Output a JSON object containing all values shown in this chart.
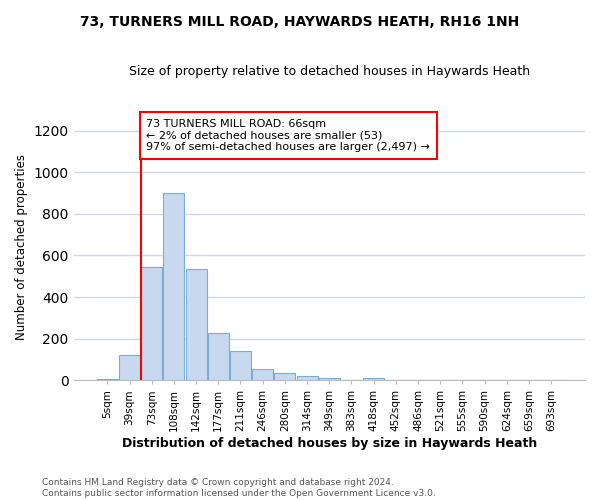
{
  "title": "73, TURNERS MILL ROAD, HAYWARDS HEATH, RH16 1NH",
  "subtitle": "Size of property relative to detached houses in Haywards Heath",
  "xlabel": "Distribution of detached houses by size in Haywards Heath",
  "ylabel": "Number of detached properties",
  "bar_categories": [
    "5sqm",
    "39sqm",
    "73sqm",
    "108sqm",
    "142sqm",
    "177sqm",
    "211sqm",
    "246sqm",
    "280sqm",
    "314sqm",
    "349sqm",
    "383sqm",
    "418sqm",
    "452sqm",
    "486sqm",
    "521sqm",
    "555sqm",
    "590sqm",
    "624sqm",
    "659sqm",
    "693sqm"
  ],
  "bar_values": [
    5,
    120,
    545,
    900,
    535,
    225,
    140,
    52,
    35,
    20,
    13,
    0,
    12,
    0,
    0,
    0,
    0,
    0,
    0,
    0,
    0
  ],
  "bar_color": "#c8d8ee",
  "bar_edge_color": "#7aafd4",
  "annotation_text": "73 TURNERS MILL ROAD: 66sqm\n← 2% of detached houses are smaller (53)\n97% of semi-detached houses are larger (2,497) →",
  "annotation_box_color": "white",
  "annotation_box_edge_color": "red",
  "vline_color": "red",
  "vline_x": 2,
  "ylim": [
    0,
    1280
  ],
  "yticks": [
    0,
    200,
    400,
    600,
    800,
    1000,
    1200
  ],
  "footer_text": "Contains HM Land Registry data © Crown copyright and database right 2024.\nContains public sector information licensed under the Open Government Licence v3.0.",
  "background_color": "#ffffff",
  "grid_color": "#d0d8e8"
}
